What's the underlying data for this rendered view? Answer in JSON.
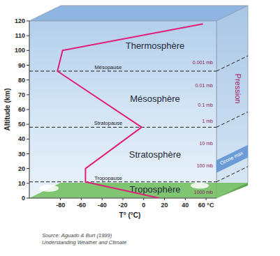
{
  "chart_data": {
    "type": "line",
    "x_label": "T° (°C)",
    "y_label": "Altitude (km)",
    "xlim": [
      -110,
      70
    ],
    "xticks": [
      -80,
      -60,
      -40,
      -20,
      0,
      20,
      40,
      {
        "value": 60,
        "label": "60 °C"
      }
    ],
    "ylim": [
      0,
      120
    ],
    "yticks": [
      0,
      10,
      20,
      30,
      40,
      50,
      60,
      70,
      80,
      90,
      100,
      110,
      120
    ],
    "color": "#e0207a",
    "x": [
      15,
      -56,
      -56,
      -2,
      -83,
      -78,
      57
    ],
    "values": [
      0,
      11,
      20,
      48,
      86,
      100,
      118
    ],
    "layers": [
      "Troposphère",
      "Stratosphère",
      "Mésosphère",
      "Thermosphère"
    ],
    "pauses": [
      {
        "label": "Tropopause",
        "altitude": 11
      },
      {
        "label": "Stratopause",
        "altitude": 48
      },
      {
        "label": "Mésopause",
        "altitude": 86
      }
    ],
    "pressure_title": "Pression",
    "pressure": [
      {
        "label": "0.001 mb",
        "altitude": 90
      },
      {
        "label": "0.01 mb",
        "altitude": 74
      },
      {
        "label": "0.1 mb",
        "altitude": 61
      },
      {
        "label": "1 mb",
        "altitude": 50
      },
      {
        "label": "10 mb",
        "altitude": 35
      },
      {
        "label": "100 mb",
        "altitude": 20
      },
      {
        "label": "1000 mb",
        "altitude": 2
      }
    ],
    "ozone": {
      "label": "Ozone max",
      "altitude": 20
    },
    "source": [
      "Source: Aguado & Burt (1999)",
      "Understanding Weather and Climate"
    ]
  }
}
